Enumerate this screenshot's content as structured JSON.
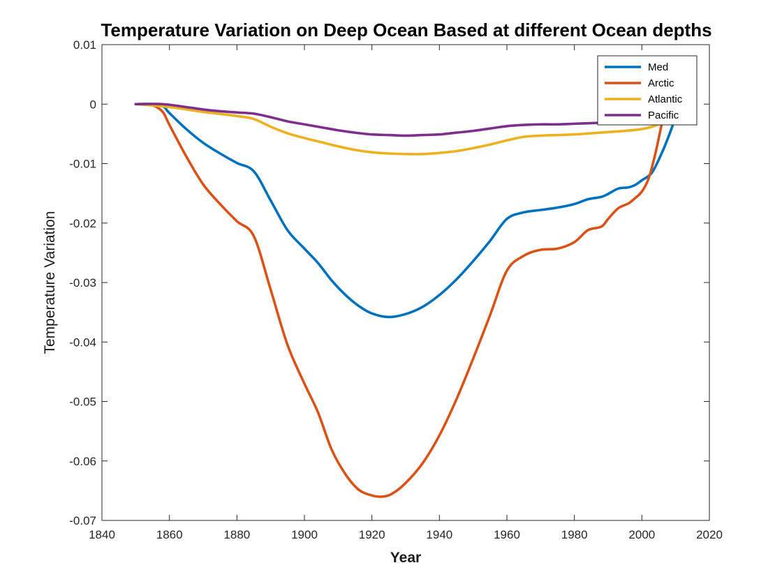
{
  "chart_data": {
    "type": "line",
    "title": "Temperature Variation on Deep Ocean Based at different Ocean depths",
    "xlabel": "Year",
    "ylabel": "Temperature Variation",
    "xlim": [
      1840,
      2020
    ],
    "ylim": [
      -0.07,
      0.01
    ],
    "xticks": [
      1840,
      1860,
      1880,
      1900,
      1920,
      1940,
      1960,
      1980,
      2000,
      2020
    ],
    "yticks": [
      0.01,
      0,
      -0.01,
      -0.02,
      -0.03,
      -0.04,
      -0.05,
      -0.06,
      -0.07
    ],
    "xtick_labels": [
      "1840",
      "1860",
      "1880",
      "1900",
      "1920",
      "1940",
      "1960",
      "1980",
      "2000",
      "2020"
    ],
    "ytick_labels": [
      "0.01",
      "0",
      "-0.01",
      "-0.02",
      "-0.03",
      "-0.04",
      "-0.05",
      "-0.06",
      "-0.07"
    ],
    "grid": false,
    "legend_position": "top-right",
    "series": [
      {
        "name": "Med",
        "color": "#0072BD",
        "points": [
          [
            1850,
            0
          ],
          [
            1855,
            0
          ],
          [
            1858,
            -0.0003
          ],
          [
            1860,
            -0.0015
          ],
          [
            1865,
            -0.0042
          ],
          [
            1870,
            -0.0065
          ],
          [
            1875,
            -0.0083
          ],
          [
            1880,
            -0.0099
          ],
          [
            1885,
            -0.0113
          ],
          [
            1890,
            -0.0162
          ],
          [
            1895,
            -0.0212
          ],
          [
            1900,
            -0.0243
          ],
          [
            1904,
            -0.0267
          ],
          [
            1908,
            -0.0296
          ],
          [
            1912,
            -0.032
          ],
          [
            1916,
            -0.0339
          ],
          [
            1920,
            -0.0352
          ],
          [
            1925,
            -0.0358
          ],
          [
            1930,
            -0.0353
          ],
          [
            1935,
            -0.0341
          ],
          [
            1940,
            -0.0321
          ],
          [
            1945,
            -0.0295
          ],
          [
            1950,
            -0.0264
          ],
          [
            1955,
            -0.023
          ],
          [
            1960,
            -0.0193
          ],
          [
            1965,
            -0.0182
          ],
          [
            1970,
            -0.0178
          ],
          [
            1975,
            -0.0174
          ],
          [
            1980,
            -0.0168
          ],
          [
            1984,
            -0.016
          ],
          [
            1988,
            -0.0156
          ],
          [
            1990,
            -0.0151
          ],
          [
            1993,
            -0.0142
          ],
          [
            1996,
            -0.014
          ],
          [
            1998,
            -0.0136
          ],
          [
            2000,
            -0.0128
          ],
          [
            2003,
            -0.0115
          ],
          [
            2006,
            -0.0081
          ],
          [
            2008,
            -0.0053
          ],
          [
            2010,
            -0.0022
          ]
        ]
      },
      {
        "name": "Arctic",
        "color": "#D95319",
        "points": [
          [
            1850,
            0
          ],
          [
            1855,
            -0.0002
          ],
          [
            1858,
            -0.0013
          ],
          [
            1860,
            -0.0035
          ],
          [
            1865,
            -0.0088
          ],
          [
            1870,
            -0.0135
          ],
          [
            1875,
            -0.0168
          ],
          [
            1880,
            -0.0197
          ],
          [
            1885,
            -0.0222
          ],
          [
            1890,
            -0.0312
          ],
          [
            1895,
            -0.0405
          ],
          [
            1900,
            -0.047
          ],
          [
            1904,
            -0.0518
          ],
          [
            1908,
            -0.058
          ],
          [
            1912,
            -0.0621
          ],
          [
            1916,
            -0.0648
          ],
          [
            1920,
            -0.0658
          ],
          [
            1923,
            -0.066
          ],
          [
            1926,
            -0.0655
          ],
          [
            1930,
            -0.0637
          ],
          [
            1935,
            -0.0604
          ],
          [
            1940,
            -0.0557
          ],
          [
            1945,
            -0.0497
          ],
          [
            1950,
            -0.0428
          ],
          [
            1955,
            -0.0355
          ],
          [
            1960,
            -0.028
          ],
          [
            1965,
            -0.0255
          ],
          [
            1970,
            -0.0245
          ],
          [
            1975,
            -0.0243
          ],
          [
            1980,
            -0.0232
          ],
          [
            1984,
            -0.0212
          ],
          [
            1988,
            -0.0206
          ],
          [
            1990,
            -0.0193
          ],
          [
            1993,
            -0.0175
          ],
          [
            1996,
            -0.0167
          ],
          [
            1998,
            -0.0158
          ],
          [
            2000,
            -0.0147
          ],
          [
            2002,
            -0.0125
          ],
          [
            2004,
            -0.0083
          ],
          [
            2006,
            -0.003
          ]
        ]
      },
      {
        "name": "Atlantic",
        "color": "#EDB120",
        "points": [
          [
            1850,
            0
          ],
          [
            1860,
            -0.0005
          ],
          [
            1870,
            -0.0013
          ],
          [
            1880,
            -0.002
          ],
          [
            1885,
            -0.0025
          ],
          [
            1890,
            -0.0038
          ],
          [
            1895,
            -0.0049
          ],
          [
            1900,
            -0.0057
          ],
          [
            1905,
            -0.0064
          ],
          [
            1910,
            -0.0071
          ],
          [
            1915,
            -0.0077
          ],
          [
            1920,
            -0.0081
          ],
          [
            1925,
            -0.0083
          ],
          [
            1930,
            -0.0084
          ],
          [
            1935,
            -0.0084
          ],
          [
            1940,
            -0.0082
          ],
          [
            1945,
            -0.0079
          ],
          [
            1950,
            -0.0074
          ],
          [
            1955,
            -0.0068
          ],
          [
            1960,
            -0.0061
          ],
          [
            1965,
            -0.0055
          ],
          [
            1970,
            -0.0053
          ],
          [
            1975,
            -0.0052
          ],
          [
            1980,
            -0.0051
          ],
          [
            1985,
            -0.0049
          ],
          [
            1990,
            -0.0047
          ],
          [
            1995,
            -0.0045
          ],
          [
            2000,
            -0.0042
          ],
          [
            2003,
            -0.0038
          ],
          [
            2007,
            -0.003
          ]
        ]
      },
      {
        "name": "Pacific",
        "color": "#7E2F8E",
        "points": [
          [
            1850,
            0
          ],
          [
            1858,
            0
          ],
          [
            1865,
            -0.0005
          ],
          [
            1870,
            -0.0009
          ],
          [
            1875,
            -0.0012
          ],
          [
            1880,
            -0.0014
          ],
          [
            1885,
            -0.0016
          ],
          [
            1890,
            -0.0022
          ],
          [
            1895,
            -0.0029
          ],
          [
            1900,
            -0.0034
          ],
          [
            1905,
            -0.0039
          ],
          [
            1910,
            -0.0044
          ],
          [
            1915,
            -0.0048
          ],
          [
            1920,
            -0.0051
          ],
          [
            1925,
            -0.0052
          ],
          [
            1930,
            -0.0053
          ],
          [
            1935,
            -0.0052
          ],
          [
            1940,
            -0.0051
          ],
          [
            1945,
            -0.0048
          ],
          [
            1950,
            -0.0045
          ],
          [
            1955,
            -0.0041
          ],
          [
            1960,
            -0.0037
          ],
          [
            1965,
            -0.0035
          ],
          [
            1970,
            -0.0034
          ],
          [
            1975,
            -0.0034
          ],
          [
            1980,
            -0.0033
          ],
          [
            1985,
            -0.0032
          ],
          [
            1990,
            -0.0031
          ],
          [
            1995,
            -0.003
          ],
          [
            2000,
            -0.003
          ]
        ]
      }
    ]
  }
}
